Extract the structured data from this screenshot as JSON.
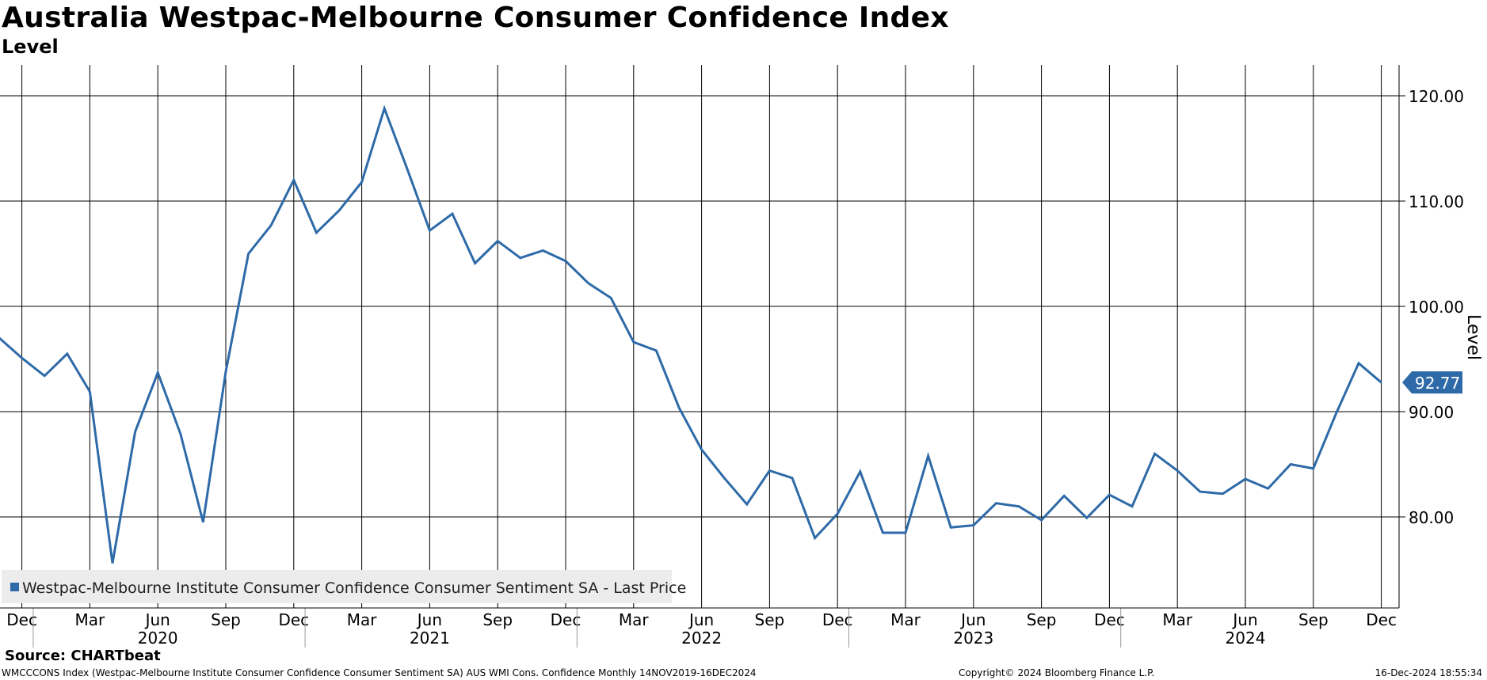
{
  "header": {
    "title": "Australia Westpac-Melbourne Consumer Confidence Index",
    "subtitle": "Level"
  },
  "footer": {
    "source": "Source: CHARTbeat",
    "description": "WMCCCONS Index (Westpac-Melbourne Institute Consumer Confidence Consumer Sentiment SA) AUS WMI Cons. Confidence  Monthly 14NOV2019-16DEC2024",
    "copyright": "Copyright© 2024 Bloomberg Finance L.P.",
    "timestamp": "16-Dec-2024 18:55:34"
  },
  "colors": {
    "line": "#2e6aa8",
    "grid": "#000000",
    "legend_bg": "#ececec",
    "last_value_bg": "#2e6aa8"
  },
  "chart_data": {
    "type": "line",
    "title": "Australia Westpac-Melbourne Consumer Confidence Index",
    "subtitle": "Level",
    "ylabel": "Level",
    "xlabel": "",
    "ylim": [
      71,
      124
    ],
    "yticks": [
      80,
      90,
      100,
      110,
      120
    ],
    "ytick_labels": [
      "80.00",
      "90.00",
      "100.00",
      "110.00",
      "120.00"
    ],
    "x_start": "2019-11",
    "x_end": "2024-12",
    "month_ticks": [
      {
        "label": "Dec",
        "index": 1
      },
      {
        "label": "Mar",
        "index": 4
      },
      {
        "label": "Jun",
        "index": 7
      },
      {
        "label": "Sep",
        "index": 10
      },
      {
        "label": "Dec",
        "index": 13
      },
      {
        "label": "Mar",
        "index": 16
      },
      {
        "label": "Jun",
        "index": 19
      },
      {
        "label": "Sep",
        "index": 22
      },
      {
        "label": "Dec",
        "index": 25
      },
      {
        "label": "Mar",
        "index": 28
      },
      {
        "label": "Jun",
        "index": 31
      },
      {
        "label": "Sep",
        "index": 34
      },
      {
        "label": "Dec",
        "index": 37
      },
      {
        "label": "Mar",
        "index": 40
      },
      {
        "label": "Jun",
        "index": 43
      },
      {
        "label": "Sep",
        "index": 46
      },
      {
        "label": "Dec",
        "index": 49
      },
      {
        "label": "Mar",
        "index": 52
      },
      {
        "label": "Jun",
        "index": 55
      },
      {
        "label": "Sep",
        "index": 58
      },
      {
        "label": "Dec",
        "index": 61
      }
    ],
    "year_labels": [
      {
        "label": "2020",
        "index": 7
      },
      {
        "label": "2021",
        "index": 19
      },
      {
        "label": "2022",
        "index": 31
      },
      {
        "label": "2023",
        "index": 43
      },
      {
        "label": "2024",
        "index": 55
      }
    ],
    "year_boundaries": [
      1.5,
      13.5,
      25.5,
      37.5,
      49.5
    ],
    "series": [
      {
        "name": "Westpac-Melbourne Institute Consumer Confidence Consumer Sentiment SA - Last Price",
        "values": [
          97.0,
          95.1,
          93.4,
          95.5,
          91.9,
          75.6,
          88.1,
          93.7,
          87.9,
          79.5,
          93.8,
          105.0,
          107.7,
          112.0,
          107.0,
          109.1,
          111.8,
          118.8,
          113.1,
          107.2,
          108.8,
          104.1,
          106.2,
          104.6,
          105.3,
          104.3,
          102.2,
          100.8,
          96.6,
          95.8,
          90.4,
          86.4,
          83.7,
          81.2,
          84.4,
          83.7,
          78.0,
          80.3,
          84.3,
          78.5,
          78.5,
          85.8,
          79.0,
          79.2,
          81.3,
          81.0,
          79.7,
          82.0,
          79.9,
          82.1,
          81.0,
          86.0,
          84.4,
          82.4,
          82.2,
          83.6,
          82.7,
          85.0,
          84.6,
          89.8,
          94.6,
          92.77
        ]
      }
    ],
    "last_value_label": "92.77",
    "legend": "Westpac-Melbourne Institute Consumer Confidence Consumer Sentiment SA - Last Price"
  }
}
